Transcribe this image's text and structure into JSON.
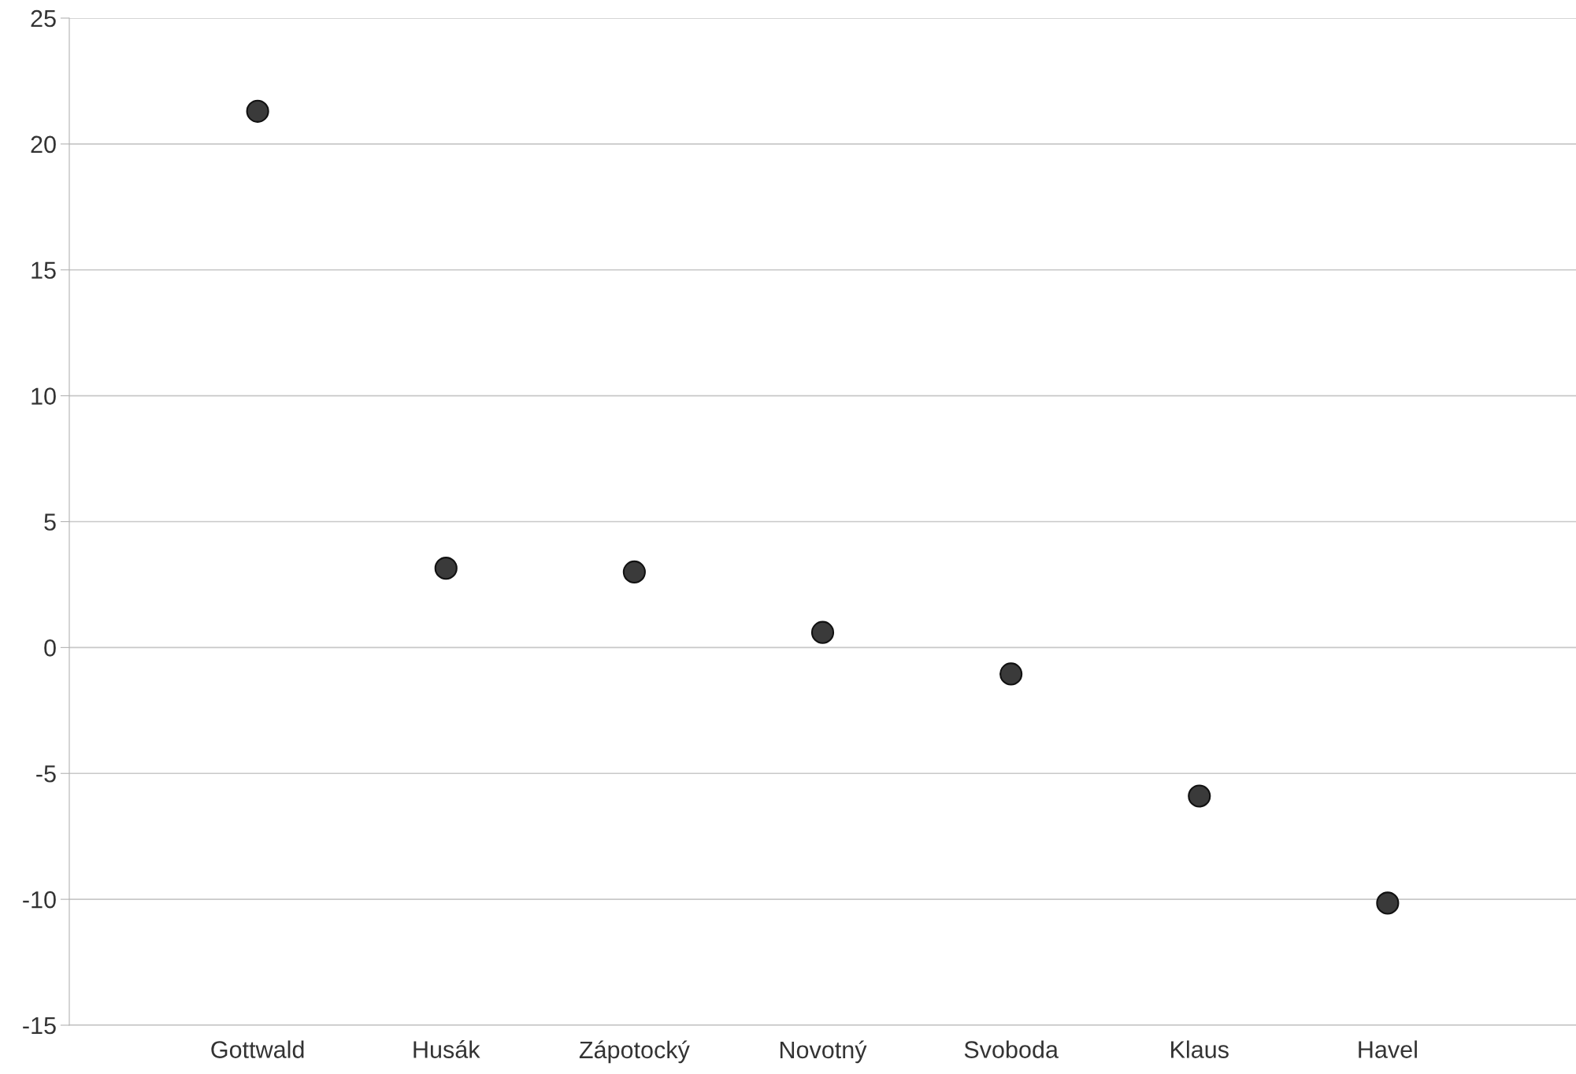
{
  "chart_data": {
    "type": "scatter",
    "categories": [
      "Gottwald",
      "Husák",
      "Zápotocký",
      "Novotný",
      "Svoboda",
      "Klaus",
      "Havel"
    ],
    "values": [
      21.3,
      3.15,
      3.0,
      0.6,
      -1.05,
      -5.9,
      -10.15
    ],
    "color": "#3a3a3a",
    "marker": "circle",
    "ylim": [
      -15,
      25
    ],
    "yticks": [
      -15,
      -10,
      -5,
      0,
      5,
      10,
      15,
      20,
      25
    ],
    "grid": "y"
  }
}
